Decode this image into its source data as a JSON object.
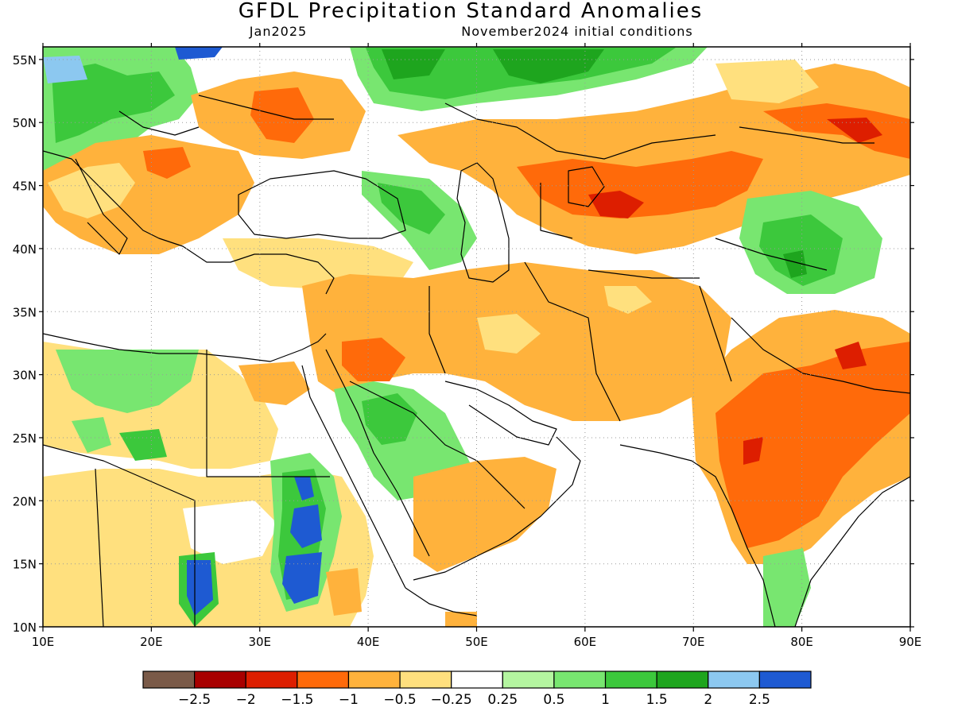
{
  "header": {
    "title": "GFDL Precipitation Standard Anomalies",
    "valid_month": "Jan2025",
    "initial_conditions": "November2024 initial conditions"
  },
  "map": {
    "lon_range": [
      10,
      90
    ],
    "lat_range": [
      10,
      56
    ],
    "lon_ticks": [
      "10E",
      "20E",
      "30E",
      "40E",
      "50E",
      "60E",
      "70E",
      "80E",
      "90E"
    ],
    "lat_ticks": [
      "10N",
      "15N",
      "20N",
      "25N",
      "30N",
      "35N",
      "40N",
      "45N",
      "50N",
      "55N"
    ],
    "grid": "dotted"
  },
  "colorbar": {
    "colors": [
      "#7a5a48",
      "#a80000",
      "#dd1e00",
      "#ff6a0a",
      "#ffb23c",
      "#ffe07e",
      "#ffffff",
      "#b4f5a0",
      "#78e670",
      "#3cc83c",
      "#1ea51e",
      "#8cc8f0",
      "#1e5ad2"
    ],
    "labels": [
      "−2.5",
      "−2",
      "−1.5",
      "−1",
      "−0.5",
      "−0.25",
      "0.25",
      "0.5",
      "1",
      "1.5",
      "2",
      "2.5"
    ]
  },
  "anomaly_regions": [
    {
      "name": "caspian-kazakhstan-dry",
      "level": -1.5,
      "color": "#ff6a0a"
    },
    {
      "name": "india-dry",
      "level": -1.5,
      "color": "#ff6a0a"
    },
    {
      "name": "iran-afghanistan-dry",
      "level": -0.5,
      "color": "#ffb23c"
    },
    {
      "name": "ukraine-dry",
      "level": -1,
      "color": "#ffb23c"
    },
    {
      "name": "western-siberia-wet",
      "level": 1,
      "color": "#3cc83c"
    },
    {
      "name": "sudan-wet",
      "level": 2.5,
      "color": "#1e5ad2"
    },
    {
      "name": "saudi-wet",
      "level": 0.5,
      "color": "#78e670"
    },
    {
      "name": "tibet-wet",
      "level": 1,
      "color": "#3cc83c"
    }
  ]
}
